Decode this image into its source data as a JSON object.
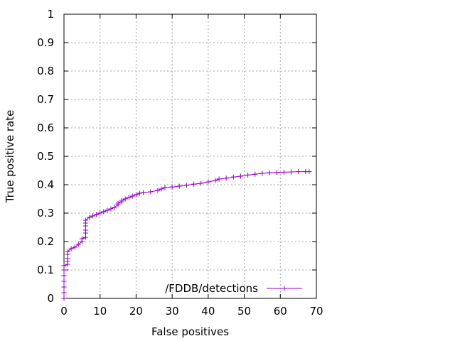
{
  "chart_data": {
    "type": "line",
    "title": "",
    "xlabel": "False positives",
    "ylabel": "True positive rate",
    "xlim": [
      0,
      70
    ],
    "ylim": [
      0,
      1
    ],
    "x_ticks": [
      "0",
      "10",
      "20",
      "30",
      "40",
      "50",
      "60",
      "70"
    ],
    "y_ticks": [
      "0",
      "0.1",
      "0.2",
      "0.3",
      "0.4",
      "0.5",
      "0.6",
      "0.7",
      "0.8",
      "0.9",
      "1"
    ],
    "grid": true,
    "legend_position": "bottom-right",
    "series": [
      {
        "name": "/FDDB/detections",
        "color": "#9400d3",
        "marker": "plus",
        "points": [
          [
            0,
            0.0
          ],
          [
            0,
            0.02
          ],
          [
            0,
            0.04
          ],
          [
            0,
            0.06
          ],
          [
            0,
            0.08
          ],
          [
            0,
            0.1
          ],
          [
            0,
            0.115
          ],
          [
            1,
            0.12
          ],
          [
            1,
            0.13
          ],
          [
            1,
            0.14
          ],
          [
            1,
            0.155
          ],
          [
            1,
            0.165
          ],
          [
            2,
            0.175
          ],
          [
            3,
            0.18
          ],
          [
            4,
            0.19
          ],
          [
            5,
            0.2
          ],
          [
            5,
            0.21
          ],
          [
            6,
            0.215
          ],
          [
            6,
            0.23
          ],
          [
            6,
            0.24
          ],
          [
            6,
            0.255
          ],
          [
            6,
            0.265
          ],
          [
            6,
            0.275
          ],
          [
            7,
            0.285
          ],
          [
            8,
            0.29
          ],
          [
            9,
            0.295
          ],
          [
            10,
            0.3
          ],
          [
            11,
            0.305
          ],
          [
            12,
            0.31
          ],
          [
            13,
            0.315
          ],
          [
            14,
            0.32
          ],
          [
            15,
            0.33
          ],
          [
            15,
            0.335
          ],
          [
            16,
            0.34
          ],
          [
            16,
            0.345
          ],
          [
            17,
            0.35
          ],
          [
            18,
            0.355
          ],
          [
            19,
            0.36
          ],
          [
            20,
            0.365
          ],
          [
            21,
            0.37
          ],
          [
            22,
            0.372
          ],
          [
            24,
            0.375
          ],
          [
            26,
            0.38
          ],
          [
            27,
            0.385
          ],
          [
            28,
            0.39
          ],
          [
            30,
            0.392
          ],
          [
            32,
            0.395
          ],
          [
            34,
            0.398
          ],
          [
            36,
            0.402
          ],
          [
            38,
            0.405
          ],
          [
            40,
            0.41
          ],
          [
            42,
            0.415
          ],
          [
            43,
            0.42
          ],
          [
            45,
            0.423
          ],
          [
            47,
            0.427
          ],
          [
            49,
            0.43
          ],
          [
            51,
            0.434
          ],
          [
            53,
            0.437
          ],
          [
            55,
            0.44
          ],
          [
            57,
            0.442
          ],
          [
            59,
            0.443
          ],
          [
            61,
            0.444
          ],
          [
            63,
            0.445
          ],
          [
            65,
            0.446
          ],
          [
            67,
            0.446
          ],
          [
            68,
            0.446
          ]
        ]
      }
    ]
  }
}
